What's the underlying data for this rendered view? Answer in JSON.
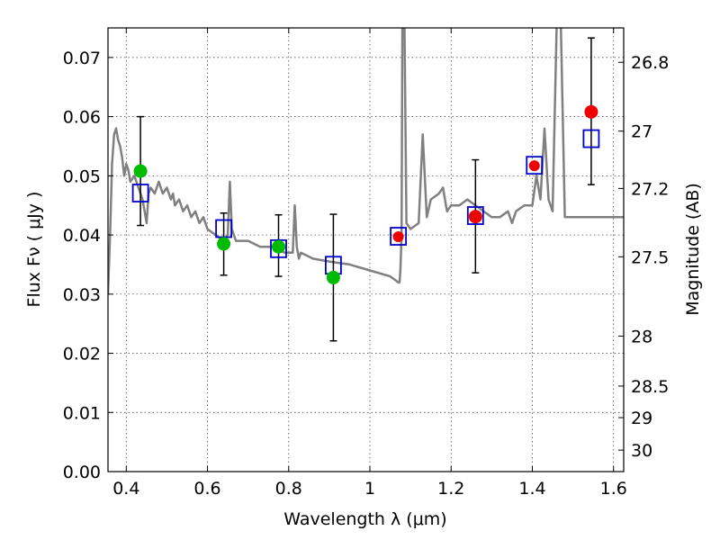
{
  "chart_data": {
    "type": "scatter",
    "title": "",
    "xlabel": "Wavelength  λ (μm)",
    "ylabel": "Flux  Fν  ( μJy )",
    "ylabel_right": "Magnitude (AB)",
    "xlim": [
      0.355,
      1.625
    ],
    "ylim": [
      0.0,
      0.075
    ],
    "grid": true,
    "x_ticks": [
      0.4,
      0.6,
      0.8,
      1.0,
      1.2,
      1.4,
      1.6
    ],
    "x_tick_labels": [
      "0.4",
      "0.6",
      "0.8",
      "1",
      "1.2",
      "1.4",
      "1.6"
    ],
    "y_ticks": [
      0.0,
      0.01,
      0.02,
      0.03,
      0.04,
      0.05,
      0.06,
      0.07
    ],
    "y_tick_labels": [
      "0.00",
      "0.01",
      "0.02",
      "0.03",
      "0.04",
      "0.05",
      "0.06",
      "0.07"
    ],
    "right_ticks": [
      {
        "mag": 26.8,
        "label": "26.8"
      },
      {
        "mag": 27.0,
        "label": "27"
      },
      {
        "mag": 27.2,
        "label": "27.2"
      },
      {
        "mag": 27.5,
        "label": "27.5"
      },
      {
        "mag": 28.0,
        "label": "28"
      },
      {
        "mag": 28.5,
        "label": "28.5"
      },
      {
        "mag": 29.0,
        "label": "29"
      },
      {
        "mag": 30.0,
        "label": "30"
      }
    ],
    "series": [
      {
        "kind": "spectrum",
        "color": "#808080",
        "x": [
          0.355,
          0.36,
          0.365,
          0.37,
          0.375,
          0.38,
          0.385,
          0.39,
          0.395,
          0.4,
          0.405,
          0.41,
          0.42,
          0.43,
          0.44,
          0.45,
          0.455,
          0.46,
          0.47,
          0.48,
          0.49,
          0.5,
          0.51,
          0.515,
          0.52,
          0.53,
          0.54,
          0.55,
          0.56,
          0.57,
          0.58,
          0.59,
          0.6,
          0.62,
          0.64,
          0.65,
          0.655,
          0.66,
          0.665,
          0.67,
          0.7,
          0.73,
          0.76,
          0.79,
          0.81,
          0.815,
          0.82,
          0.825,
          0.83,
          0.86,
          0.9,
          0.95,
          1.0,
          1.05,
          1.06,
          1.07,
          1.073,
          1.075,
          1.078,
          1.08,
          1.085,
          1.09,
          1.1,
          1.12,
          1.13,
          1.14,
          1.15,
          1.17,
          1.18,
          1.19,
          1.2,
          1.22,
          1.24,
          1.26,
          1.28,
          1.3,
          1.32,
          1.34,
          1.35,
          1.36,
          1.38,
          1.4,
          1.41,
          1.42,
          1.43,
          1.44,
          1.45,
          1.455,
          1.46,
          1.47,
          1.48,
          1.5,
          1.52,
          1.55,
          1.58,
          1.6,
          1.625
        ],
        "y": [
          0.03,
          0.04,
          0.052,
          0.057,
          0.058,
          0.056,
          0.055,
          0.053,
          0.05,
          0.052,
          0.051,
          0.049,
          0.05,
          0.048,
          0.046,
          0.042,
          0.047,
          0.048,
          0.047,
          0.049,
          0.047,
          0.048,
          0.046,
          0.047,
          0.045,
          0.046,
          0.044,
          0.045,
          0.043,
          0.044,
          0.042,
          0.043,
          0.041,
          0.04,
          0.039,
          0.04,
          0.049,
          0.041,
          0.04,
          0.039,
          0.039,
          0.038,
          0.038,
          0.037,
          0.037,
          0.045,
          0.038,
          0.036,
          0.037,
          0.036,
          0.0355,
          0.035,
          0.034,
          0.033,
          0.0325,
          0.032,
          0.032,
          0.034,
          0.04,
          0.076,
          0.076,
          0.042,
          0.041,
          0.042,
          0.057,
          0.043,
          0.046,
          0.047,
          0.048,
          0.044,
          0.045,
          0.045,
          0.046,
          0.045,
          0.044,
          0.043,
          0.043,
          0.044,
          0.042,
          0.044,
          0.045,
          0.045,
          0.05,
          0.046,
          0.058,
          0.046,
          0.044,
          0.06,
          0.076,
          0.076,
          0.043,
          0.043,
          0.043,
          0.043,
          0.043,
          0.043,
          0.043
        ]
      },
      {
        "kind": "model_squares",
        "edge_color": "#0000cc",
        "x": [
          0.435,
          0.64,
          0.775,
          0.91,
          1.07,
          1.26,
          1.405,
          1.545
        ],
        "y": [
          0.047,
          0.041,
          0.0376,
          0.0348,
          0.0397,
          0.0432,
          0.0517,
          0.0562
        ]
      },
      {
        "kind": "optical_photometry",
        "color": "#00bb00",
        "x": [
          0.435,
          0.64,
          0.775,
          0.91
        ],
        "y": [
          0.0508,
          0.0385,
          0.038,
          0.0328
        ],
        "yerr_low": [
          0.0416,
          0.0332,
          0.033,
          0.0221
        ],
        "yerr_high": [
          0.06,
          0.0437,
          0.0434,
          0.0435
        ]
      },
      {
        "kind": "nir_photometry",
        "color": "#ee0000",
        "x": [
          1.07,
          1.26,
          1.405,
          1.545
        ],
        "y": [
          0.0397,
          0.0431,
          0.0517,
          0.0608
        ],
        "yerr_low": [
          null,
          0.0336,
          null,
          0.0485
        ],
        "yerr_high": [
          null,
          0.0527,
          null,
          0.0733
        ],
        "marker_size": [
          "small",
          "large",
          "small",
          "large"
        ]
      }
    ]
  }
}
